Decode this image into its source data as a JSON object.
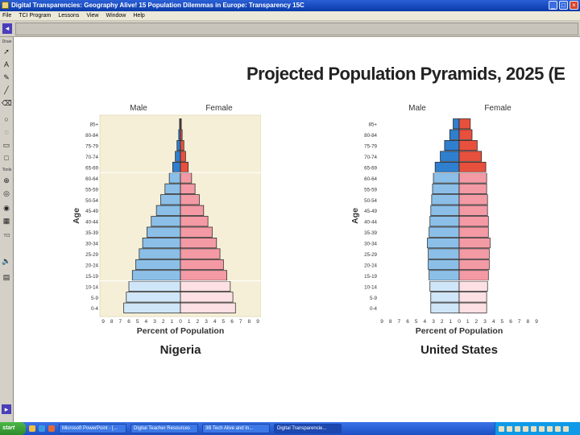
{
  "window": {
    "title": "Digital Transparencies: Geography Alive! 15 Population Dilemmas in Europe: Transparency 15C"
  },
  "menu": [
    "File",
    "TCI Program",
    "Lessons",
    "View",
    "Window",
    "Help"
  ],
  "palette": {
    "label_top": "Draw",
    "label_mid": "Tools",
    "label_low": "TCI",
    "icons": [
      "pointer-icon",
      "text-icon",
      "pen-icon",
      "line-icon",
      "eraser-icon",
      "circle-icon",
      "lasso-icon",
      "rectangle-icon",
      "square-icon",
      "zoom-icon",
      "spotlight-icon",
      "audio-icon",
      "clipboard-icon"
    ]
  },
  "taskbar": {
    "start_label": "start",
    "tasks": [
      "Microsoft PowerPoint - [...",
      "Digital Teacher Resources",
      "3B Tech Alive and In...",
      "Digital Transparencie..."
    ],
    "active_task_index": 3
  },
  "main": {
    "heading": "Projected Population Pyramids, 2025 (E"
  },
  "chart_data": [
    {
      "type": "bar",
      "orientation": "horizontal-population-pyramid",
      "title": "Nigeria",
      "xlabel": "Percent of Population",
      "ylabel": "Age",
      "xlim": [
        -9,
        9
      ],
      "x_tick_labels": [
        "9",
        "8",
        "7",
        "6",
        "5",
        "4",
        "3",
        "2",
        "1",
        "0",
        "1",
        "2",
        "3",
        "4",
        "5",
        "6",
        "7",
        "8",
        "9"
      ],
      "categories": [
        "0-4",
        "5-9",
        "10-14",
        "15-19",
        "20-24",
        "25-29",
        "30-34",
        "35-39",
        "40-44",
        "45-49",
        "50-54",
        "55-59",
        "60-64",
        "65-69",
        "70-74",
        "75-79",
        "80-84",
        "85+"
      ],
      "legend": [
        "Male",
        "Female"
      ],
      "series": [
        {
          "name": "Male",
          "color": "#8bbfe8",
          "values": [
            6.6,
            6.3,
            6.0,
            5.6,
            5.2,
            4.8,
            4.4,
            3.9,
            3.4,
            2.8,
            2.3,
            1.8,
            1.3,
            0.9,
            0.6,
            0.4,
            0.2,
            0.1
          ]
        },
        {
          "name": "Female",
          "color": "#f39aa5",
          "values": [
            6.4,
            6.1,
            5.8,
            5.4,
            5.0,
            4.6,
            4.2,
            3.7,
            3.2,
            2.7,
            2.2,
            1.7,
            1.3,
            0.9,
            0.6,
            0.4,
            0.2,
            0.1
          ]
        }
      ]
    },
    {
      "type": "bar",
      "orientation": "horizontal-population-pyramid",
      "title": "United States",
      "xlabel": "Percent of Population",
      "ylabel": "Age",
      "xlim": [
        -9,
        9
      ],
      "x_tick_labels": [
        "9",
        "8",
        "7",
        "6",
        "5",
        "4",
        "3",
        "2",
        "1",
        "0",
        "1",
        "2",
        "3",
        "4",
        "5",
        "6",
        "7",
        "8",
        "9"
      ],
      "categories": [
        "0-4",
        "5-9",
        "10-14",
        "15-19",
        "20-24",
        "25-29",
        "30-34",
        "35-39",
        "40-44",
        "45-49",
        "50-54",
        "55-59",
        "60-64",
        "65-69",
        "70-74",
        "75-79",
        "80-84",
        "85+"
      ],
      "legend": [
        "Male",
        "Female"
      ],
      "series": [
        {
          "name": "Male",
          "color": "#8bbfe8",
          "values": [
            3.3,
            3.3,
            3.4,
            3.5,
            3.6,
            3.6,
            3.7,
            3.5,
            3.4,
            3.3,
            3.2,
            3.1,
            3.0,
            2.8,
            2.2,
            1.7,
            1.1,
            0.7
          ]
        },
        {
          "name": "Female",
          "color": "#f39aa5",
          "values": [
            3.2,
            3.2,
            3.3,
            3.4,
            3.5,
            3.5,
            3.6,
            3.4,
            3.4,
            3.3,
            3.3,
            3.2,
            3.2,
            3.1,
            2.6,
            2.1,
            1.5,
            1.3
          ]
        }
      ]
    }
  ]
}
